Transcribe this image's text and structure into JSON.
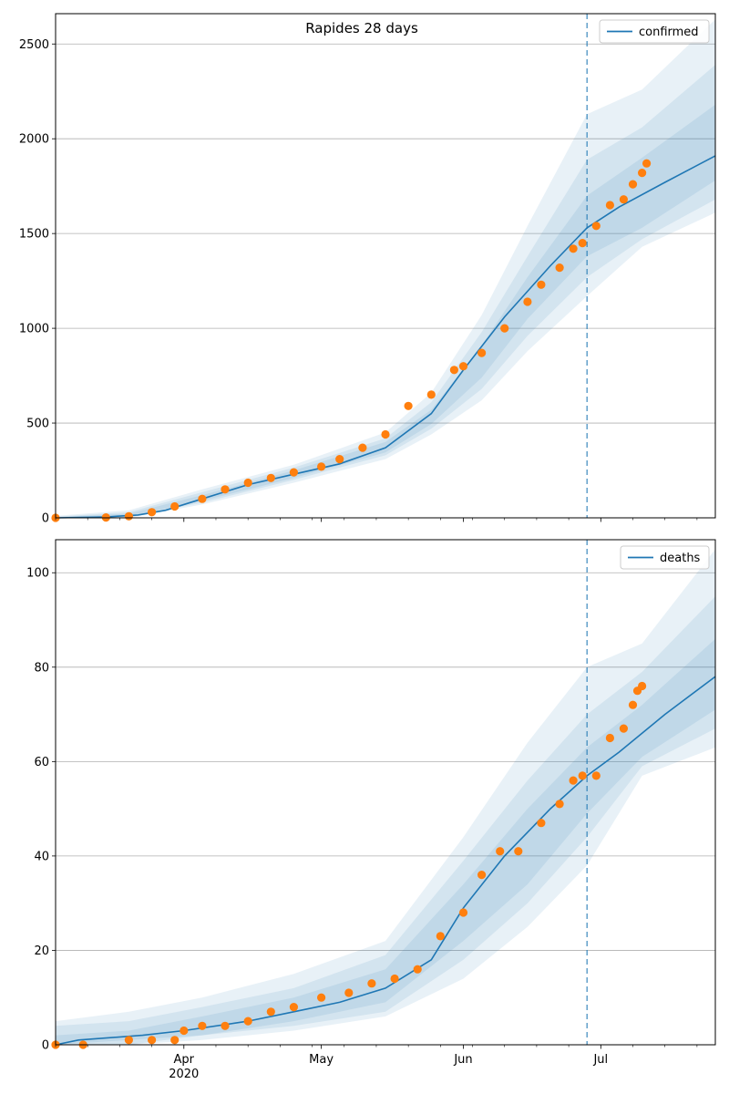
{
  "title": "Rapides 28 days",
  "colors": {
    "model_line": "#1f77b4",
    "observed": "#ff7f0e",
    "band": "#1f77b4",
    "grid": "#b0b0b0",
    "forecast_marker": "#1f77b4"
  },
  "x_axis": {
    "month_ticks": [
      {
        "date": "2020-04-01",
        "label": "Apr"
      },
      {
        "date": "2020-05-01",
        "label": "May"
      },
      {
        "date": "2020-06-01",
        "label": "Jun"
      },
      {
        "date": "2020-07-01",
        "label": "Jul"
      }
    ],
    "year_label": "2020",
    "range": [
      "2020-03-04",
      "2020-07-26"
    ],
    "forecast_start": "2020-06-28"
  },
  "chart_data": [
    {
      "type": "line",
      "legend": "confirmed",
      "legend_position": "top-right",
      "grid": "horizontal",
      "ylim": [
        0,
        2660
      ],
      "yticks": [
        "0",
        "500",
        "1000",
        "1500",
        "2000",
        "2500"
      ],
      "model_series": {
        "x": [
          "2020-03-04",
          "2020-03-15",
          "2020-03-22",
          "2020-03-28",
          "2020-04-05",
          "2020-04-15",
          "2020-04-25",
          "2020-05-05",
          "2020-05-15",
          "2020-05-25",
          "2020-06-01",
          "2020-06-10",
          "2020-06-20",
          "2020-06-28",
          "2020-07-05",
          "2020-07-15",
          "2020-07-26"
        ],
        "y": [
          0,
          5,
          15,
          40,
          100,
          175,
          230,
          285,
          370,
          550,
          780,
          1060,
          1330,
          1530,
          1640,
          1770,
          1910
        ]
      },
      "bands": [
        {
          "x": [
            "2020-03-04",
            "2020-03-20",
            "2020-04-05",
            "2020-04-25",
            "2020-05-15",
            "2020-05-25",
            "2020-06-05",
            "2020-06-15",
            "2020-06-28",
            "2020-07-10",
            "2020-07-26"
          ],
          "lower": [
            0,
            0,
            70,
            185,
            310,
            440,
            620,
            880,
            1170,
            1430,
            1610
          ],
          "upper": [
            10,
            40,
            150,
            280,
            450,
            660,
            1070,
            1540,
            2130,
            2260,
            2630
          ]
        },
        {
          "x": [
            "2020-03-04",
            "2020-03-20",
            "2020-04-05",
            "2020-04-25",
            "2020-05-15",
            "2020-05-25",
            "2020-06-05",
            "2020-06-15",
            "2020-06-28",
            "2020-07-10",
            "2020-07-26"
          ],
          "lower": [
            0,
            3,
            80,
            200,
            330,
            470,
            680,
            960,
            1270,
            1470,
            1680
          ],
          "upper": [
            6,
            30,
            135,
            265,
            420,
            610,
            980,
            1380,
            1890,
            2060,
            2390
          ]
        },
        {
          "x": [
            "2020-03-04",
            "2020-03-20",
            "2020-04-05",
            "2020-04-25",
            "2020-05-15",
            "2020-05-25",
            "2020-06-05",
            "2020-06-15",
            "2020-06-28",
            "2020-07-10",
            "2020-07-26"
          ],
          "lower": [
            0,
            6,
            90,
            210,
            345,
            495,
            740,
            1050,
            1380,
            1530,
            1780
          ],
          "upper": [
            4,
            22,
            120,
            250,
            400,
            570,
            910,
            1270,
            1700,
            1900,
            2180
          ]
        }
      ],
      "observed": {
        "x": [
          "2020-03-04",
          "2020-03-15",
          "2020-03-20",
          "2020-03-25",
          "2020-03-30",
          "2020-04-05",
          "2020-04-10",
          "2020-04-15",
          "2020-04-20",
          "2020-04-25",
          "2020-05-01",
          "2020-05-05",
          "2020-05-10",
          "2020-05-15",
          "2020-05-20",
          "2020-05-25",
          "2020-05-30",
          "2020-06-01",
          "2020-06-05",
          "2020-06-10",
          "2020-06-15",
          "2020-06-18",
          "2020-06-22",
          "2020-06-25",
          "2020-06-27",
          "2020-06-30",
          "2020-07-03",
          "2020-07-06",
          "2020-07-08",
          "2020-07-10",
          "2020-07-11"
        ],
        "y": [
          0,
          2,
          8,
          30,
          60,
          100,
          150,
          185,
          210,
          240,
          270,
          310,
          370,
          440,
          590,
          650,
          780,
          800,
          870,
          1000,
          1140,
          1230,
          1320,
          1420,
          1450,
          1540,
          1650,
          1680,
          1760,
          1820,
          1870
        ]
      }
    },
    {
      "type": "line",
      "legend": "deaths",
      "legend_position": "top-right",
      "grid": "horizontal",
      "ylim": [
        0,
        107
      ],
      "yticks": [
        "0",
        "20",
        "40",
        "60",
        "80",
        "100"
      ],
      "model_series": {
        "x": [
          "2020-03-04",
          "2020-03-09",
          "2020-03-23",
          "2020-04-01",
          "2020-04-15",
          "2020-04-25",
          "2020-05-05",
          "2020-05-15",
          "2020-05-25",
          "2020-06-01",
          "2020-06-10",
          "2020-06-20",
          "2020-06-28",
          "2020-07-05",
          "2020-07-15",
          "2020-07-26"
        ],
        "y": [
          0,
          1,
          2,
          3,
          5,
          7,
          9,
          12,
          18,
          29,
          40,
          50,
          57,
          62,
          70,
          78
        ]
      },
      "bands": [
        {
          "x": [
            "2020-03-04",
            "2020-03-20",
            "2020-04-05",
            "2020-04-25",
            "2020-05-15",
            "2020-06-01",
            "2020-06-15",
            "2020-06-28",
            "2020-07-10",
            "2020-07-26"
          ],
          "lower": [
            0,
            0,
            1,
            3,
            6,
            14,
            25,
            38,
            57,
            63
          ],
          "upper": [
            5,
            7,
            10,
            15,
            22,
            44,
            64,
            80,
            85,
            105
          ]
        },
        {
          "x": [
            "2020-03-04",
            "2020-03-20",
            "2020-04-05",
            "2020-04-25",
            "2020-05-15",
            "2020-06-01",
            "2020-06-15",
            "2020-06-28",
            "2020-07-10",
            "2020-07-26"
          ],
          "lower": [
            0,
            0,
            2,
            4,
            7,
            18,
            30,
            44,
            59,
            67
          ],
          "upper": [
            4,
            5,
            8,
            12,
            19,
            39,
            56,
            70,
            79,
            95
          ]
        },
        {
          "x": [
            "2020-03-04",
            "2020-03-20",
            "2020-04-05",
            "2020-04-25",
            "2020-05-15",
            "2020-06-01",
            "2020-06-15",
            "2020-06-28",
            "2020-07-10",
            "2020-07-26"
          ],
          "lower": [
            0,
            1,
            2,
            5,
            9,
            22,
            34,
            49,
            61,
            71
          ],
          "upper": [
            2,
            3,
            6,
            10,
            16,
            34,
            50,
            63,
            72,
            86
          ]
        }
      ],
      "observed": {
        "x": [
          "2020-03-04",
          "2020-03-10",
          "2020-03-20",
          "2020-03-25",
          "2020-03-30",
          "2020-04-01",
          "2020-04-05",
          "2020-04-10",
          "2020-04-15",
          "2020-04-20",
          "2020-04-25",
          "2020-05-01",
          "2020-05-07",
          "2020-05-12",
          "2020-05-17",
          "2020-05-22",
          "2020-05-27",
          "2020-06-01",
          "2020-06-05",
          "2020-06-09",
          "2020-06-13",
          "2020-06-18",
          "2020-06-22",
          "2020-06-25",
          "2020-06-27",
          "2020-06-30",
          "2020-07-03",
          "2020-07-06",
          "2020-07-08",
          "2020-07-09",
          "2020-07-10"
        ],
        "y": [
          0,
          0,
          1,
          1,
          1,
          3,
          4,
          4,
          5,
          7,
          8,
          10,
          11,
          13,
          14,
          16,
          23,
          28,
          36,
          41,
          41,
          47,
          51,
          56,
          57,
          57,
          65,
          67,
          72,
          75,
          76
        ]
      }
    }
  ]
}
